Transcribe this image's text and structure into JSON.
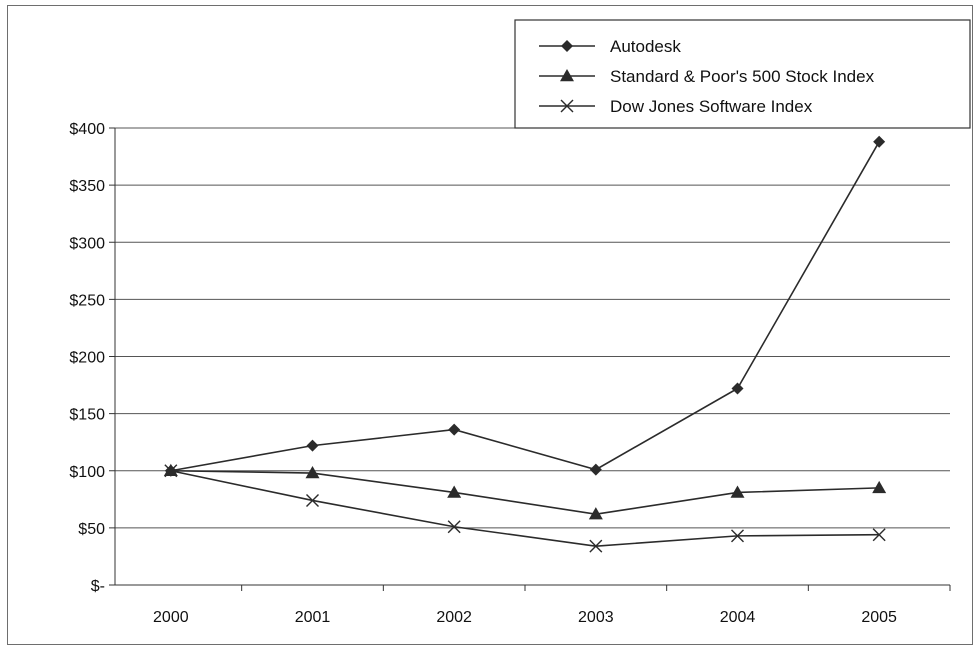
{
  "chart_data": {
    "type": "line",
    "title": "",
    "xlabel": "",
    "ylabel": "",
    "categories": [
      "2000",
      "2001",
      "2002",
      "2003",
      "2004",
      "2005"
    ],
    "y_ticks": [
      0,
      50,
      100,
      150,
      200,
      250,
      300,
      350,
      400
    ],
    "y_tick_labels": [
      "$-",
      "$50",
      "$100",
      "$150",
      "$200",
      "$250",
      "$300",
      "$350",
      "$400"
    ],
    "ylim": [
      0,
      400
    ],
    "grid": true,
    "legend_position": "top-right",
    "series": [
      {
        "name": "Autodesk",
        "marker": "diamond",
        "values": [
          100,
          122,
          136,
          101,
          172,
          388
        ]
      },
      {
        "name": "Standard & Poor's 500 Stock Index",
        "marker": "triangle",
        "values": [
          100,
          98,
          81,
          62,
          81,
          85
        ]
      },
      {
        "name": "Dow Jones Software Index",
        "marker": "x",
        "values": [
          100,
          74,
          51,
          34,
          43,
          44
        ]
      }
    ],
    "colors": {
      "line": "#2b2b2b",
      "grid": "#555555",
      "axis": "#333333",
      "frame": "#6e6e6e"
    }
  }
}
